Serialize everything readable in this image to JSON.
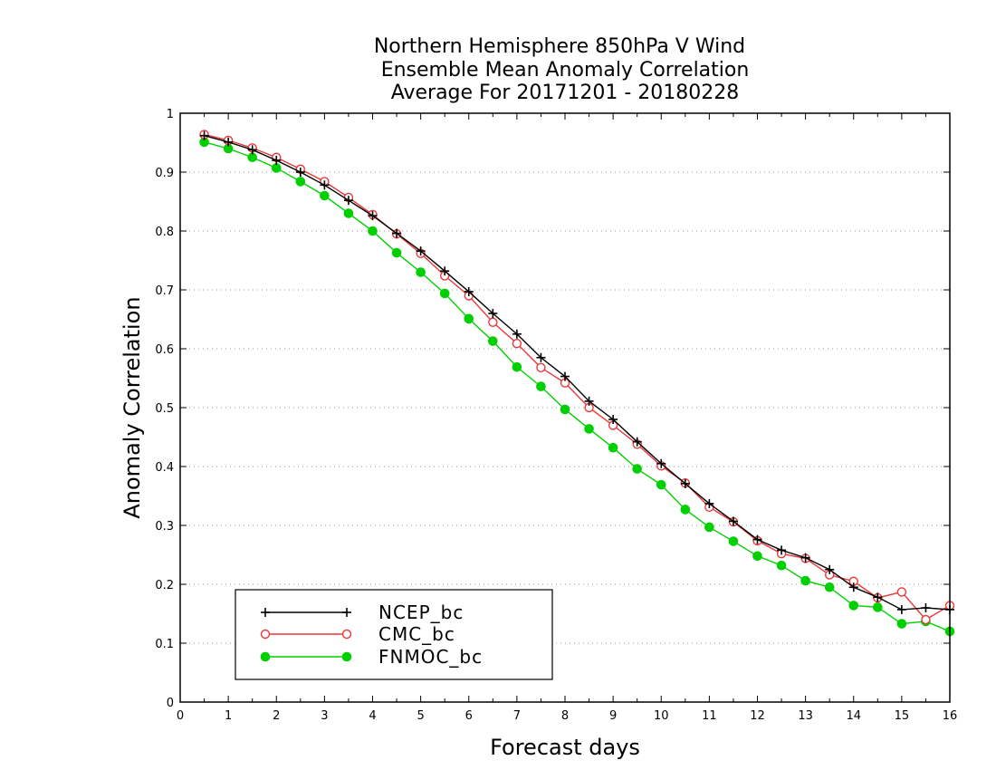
{
  "chart_data": {
    "type": "line",
    "title_lines": [
      "Northern Hemisphere 850hPa V Wind",
      "Ensemble Mean Anomaly Correlation",
      "Average For 20171201 - 20180228"
    ],
    "xlabel": "Forecast days",
    "ylabel": "Anomaly Correlation",
    "xlim": [
      0,
      16
    ],
    "ylim": [
      0,
      1
    ],
    "xticks": [
      "0",
      "1",
      "2",
      "3",
      "4",
      "5",
      "6",
      "7",
      "8",
      "9",
      "10",
      "11",
      "12",
      "13",
      "14",
      "15",
      "16"
    ],
    "yticks": [
      "0",
      "0.1",
      "0.2",
      "0.3",
      "0.4",
      "0.5",
      "0.6",
      "0.7",
      "0.8",
      "0.9",
      "1"
    ],
    "grid": "dotted horizontal",
    "legend_position": "bottom-left",
    "x": [
      0.5,
      1,
      1.5,
      2,
      2.5,
      3,
      3.5,
      4,
      4.5,
      5,
      5.5,
      6,
      6.5,
      7,
      7.5,
      8,
      8.5,
      9,
      9.5,
      10,
      10.5,
      11,
      11.5,
      12,
      12.5,
      13,
      13.5,
      14,
      14.5,
      15,
      15.5,
      16
    ],
    "series": [
      {
        "name": "NCEP_bc",
        "color": "#000000",
        "marker": "plus",
        "values": [
          0.962,
          0.951,
          0.938,
          0.92,
          0.9,
          0.878,
          0.852,
          0.826,
          0.796,
          0.766,
          0.732,
          0.697,
          0.66,
          0.625,
          0.585,
          0.553,
          0.511,
          0.48,
          0.442,
          0.405,
          0.371,
          0.337,
          0.307,
          0.276,
          0.258,
          0.245,
          0.225,
          0.195,
          0.178,
          0.157,
          0.16,
          0.157
        ]
      },
      {
        "name": "CMC_bc",
        "color": "#e8393a",
        "marker": "open-circle",
        "values": [
          0.964,
          0.954,
          0.941,
          0.925,
          0.905,
          0.884,
          0.857,
          0.828,
          0.795,
          0.762,
          0.724,
          0.69,
          0.645,
          0.609,
          0.568,
          0.542,
          0.5,
          0.47,
          0.438,
          0.401,
          0.372,
          0.331,
          0.306,
          0.274,
          0.252,
          0.244,
          0.216,
          0.205,
          0.177,
          0.187,
          0.14,
          0.164
        ]
      },
      {
        "name": "FNMOC_bc",
        "color": "#00d000",
        "marker": "filled-circle",
        "values": [
          0.951,
          0.94,
          0.925,
          0.907,
          0.884,
          0.86,
          0.83,
          0.8,
          0.763,
          0.73,
          0.694,
          0.651,
          0.613,
          0.569,
          0.536,
          0.497,
          0.464,
          0.432,
          0.396,
          0.369,
          0.327,
          0.297,
          0.273,
          0.248,
          0.232,
          0.206,
          0.195,
          0.164,
          0.161,
          0.133,
          0.137,
          0.12
        ]
      }
    ]
  }
}
